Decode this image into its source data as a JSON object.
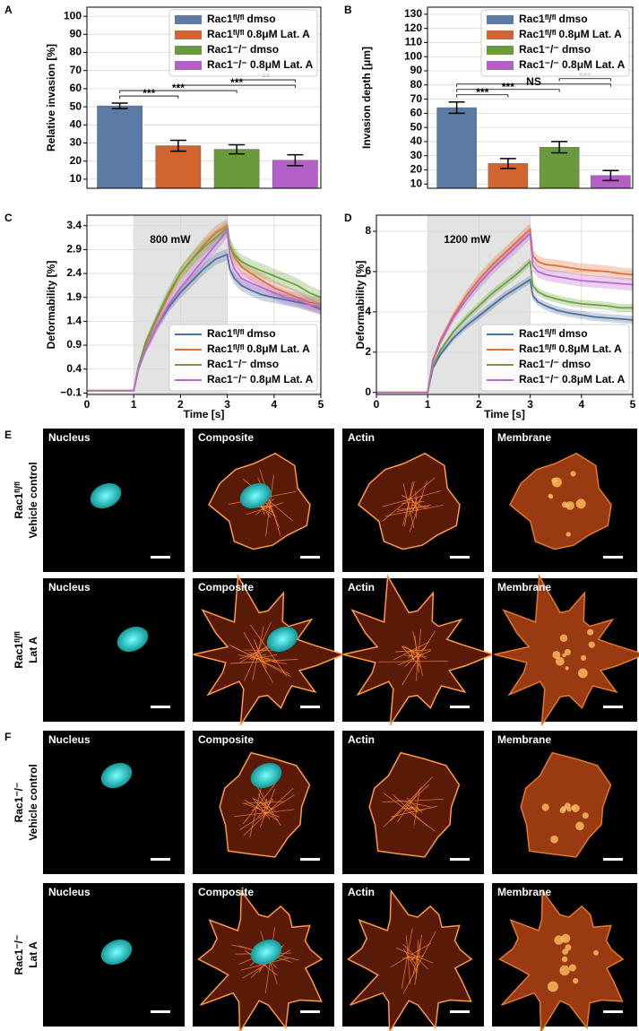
{
  "chart_data": [
    {
      "panel": "A",
      "type": "bar",
      "ylabel": "Relative invasion [%]",
      "categories": [
        "Rac1ᶠˡ/ᶠˡ dmso",
        "Rac1ᶠˡ/ᶠˡ 0.8μM Lat. A",
        "Rac1⁻/⁻ dmso",
        "Rac1⁻/⁻ 0.8μM Lat. A"
      ],
      "values": [
        50.5,
        28.5,
        26.5,
        20.5
      ],
      "errors": [
        1.5,
        3,
        2.5,
        3
      ],
      "colors": [
        "#5b7aa6",
        "#d2642f",
        "#6b9a3c",
        "#b45ec8"
      ],
      "ylim": [
        5,
        105
      ],
      "yticks": [
        10,
        20,
        30,
        40,
        50,
        60,
        70,
        80,
        90,
        100
      ],
      "grid": true,
      "legend": "upper right",
      "significance": [
        {
          "pair": [
            0,
            1
          ],
          "label": "***"
        },
        {
          "pair": [
            0,
            2
          ],
          "label": "***"
        },
        {
          "pair": [
            1,
            3
          ],
          "label": "***"
        },
        {
          "pair": [
            2,
            3
          ],
          "label": "**"
        }
      ]
    },
    {
      "panel": "B",
      "type": "bar",
      "ylabel": "Invasion depth [μm]",
      "categories": [
        "Rac1ᶠˡ/ᶠˡ dmso",
        "Rac1ᶠˡ/ᶠˡ 0.8μM Lat. A",
        "Rac1⁻/⁻ dmso",
        "Rac1⁻/⁻ 0.8μM Lat. A"
      ],
      "values": [
        64,
        24.5,
        36,
        16
      ],
      "errors": [
        4,
        3.5,
        4,
        3.5
      ],
      "colors": [
        "#5b7aa6",
        "#d2642f",
        "#6b9a3c",
        "#b45ec8"
      ],
      "ylim": [
        7,
        135
      ],
      "yticks": [
        10,
        20,
        30,
        40,
        50,
        60,
        70,
        80,
        90,
        100,
        110,
        120,
        130
      ],
      "grid": true,
      "legend": "upper right",
      "significance": [
        {
          "pair": [
            0,
            1
          ],
          "label": "***"
        },
        {
          "pair": [
            0,
            2
          ],
          "label": "***"
        },
        {
          "pair": [
            0,
            3
          ],
          "label": "NS"
        },
        {
          "pair": [
            2,
            3
          ],
          "label": "***"
        }
      ]
    },
    {
      "panel": "C",
      "type": "line",
      "ylabel": "Deformability [%]",
      "xlabel": "Time [s]",
      "annotation": "800 mW",
      "shade_x": [
        1,
        3
      ],
      "x": [
        0,
        0.5,
        1,
        1.1,
        1.25,
        1.5,
        1.75,
        2,
        2.25,
        2.5,
        2.75,
        3,
        3.05,
        3.15,
        3.3,
        3.5,
        3.75,
        4,
        4.25,
        4.5,
        4.75,
        5
      ],
      "xlim": [
        0,
        5
      ],
      "xticks": [
        0,
        1,
        2,
        3,
        4,
        5
      ],
      "ylim": [
        -0.13,
        3.62
      ],
      "yticks": [
        {
          "value": -0.1,
          "label": "−0.1"
        },
        0.4,
        0.9,
        1.4,
        1.9,
        2.4,
        2.9,
        3.4
      ],
      "grid": true,
      "legend": "lower right",
      "series": [
        {
          "name": "Rac1ᶠˡ/ᶠˡ dmso",
          "color": "#4e6fa0",
          "values": [
            -0.05,
            -0.05,
            -0.05,
            0.4,
            0.8,
            1.3,
            1.7,
            2.0,
            2.25,
            2.5,
            2.7,
            2.8,
            2.5,
            2.3,
            2.15,
            2.05,
            1.95,
            1.9,
            1.85,
            1.8,
            1.75,
            1.65
          ],
          "errors": [
            0,
            0,
            0,
            0.05,
            0.08,
            0.1,
            0.1,
            0.12,
            0.12,
            0.12,
            0.12,
            0.12,
            0.12,
            0.12,
            0.12,
            0.12,
            0.12,
            0.12,
            0.12,
            0.12,
            0.12,
            0.12
          ]
        },
        {
          "name": "Rac1ᶠˡ/ᶠˡ 0.8μM Lat. A",
          "color": "#e0713a",
          "values": [
            -0.05,
            -0.05,
            -0.05,
            0.45,
            0.9,
            1.45,
            1.95,
            2.4,
            2.7,
            3.0,
            3.25,
            3.4,
            3.0,
            2.75,
            2.55,
            2.4,
            2.25,
            2.1,
            2.0,
            1.9,
            1.8,
            1.75
          ],
          "errors": [
            0,
            0,
            0,
            0.05,
            0.08,
            0.1,
            0.12,
            0.14,
            0.15,
            0.15,
            0.15,
            0.15,
            0.15,
            0.15,
            0.15,
            0.15,
            0.15,
            0.15,
            0.15,
            0.15,
            0.15,
            0.15
          ]
        },
        {
          "name": "Rac1⁻/⁻ dmso",
          "color": "#6ca23e",
          "values": [
            -0.05,
            -0.05,
            -0.05,
            0.45,
            0.95,
            1.5,
            2.0,
            2.4,
            2.7,
            2.95,
            3.15,
            3.35,
            3.0,
            2.8,
            2.65,
            2.55,
            2.45,
            2.35,
            2.25,
            2.15,
            2.0,
            1.9
          ],
          "errors": [
            0,
            0,
            0,
            0.05,
            0.08,
            0.1,
            0.12,
            0.14,
            0.15,
            0.15,
            0.15,
            0.15,
            0.15,
            0.15,
            0.15,
            0.15,
            0.15,
            0.15,
            0.15,
            0.15,
            0.15,
            0.15
          ]
        },
        {
          "name": "Rac1⁻/⁻ 0.8μM Lat. A",
          "color": "#b968cf",
          "values": [
            -0.05,
            -0.05,
            -0.05,
            0.4,
            0.8,
            1.3,
            1.75,
            2.1,
            2.4,
            2.7,
            3.0,
            3.3,
            2.8,
            2.5,
            2.3,
            2.2,
            2.1,
            2.0,
            1.9,
            1.85,
            1.75,
            1.7
          ],
          "errors": [
            0,
            0,
            0,
            0.05,
            0.08,
            0.1,
            0.12,
            0.14,
            0.15,
            0.15,
            0.15,
            0.15,
            0.15,
            0.15,
            0.15,
            0.15,
            0.15,
            0.15,
            0.15,
            0.15,
            0.15,
            0.15
          ]
        }
      ]
    },
    {
      "panel": "D",
      "type": "line",
      "ylabel": "Deformability [%]",
      "xlabel": "Time [s]",
      "annotation": "1200 mW",
      "shade_x": [
        1,
        3
      ],
      "x": [
        0,
        0.5,
        1,
        1.1,
        1.25,
        1.5,
        1.75,
        2,
        2.25,
        2.5,
        2.75,
        3,
        3.05,
        3.15,
        3.3,
        3.5,
        3.75,
        4,
        4.25,
        4.5,
        4.75,
        5
      ],
      "xlim": [
        0,
        5
      ],
      "xticks": [
        0,
        1,
        2,
        3,
        4,
        5
      ],
      "ylim": [
        -0.1,
        8.8
      ],
      "yticks": [
        0,
        2,
        4,
        6,
        8
      ],
      "grid": true,
      "legend": "lower right",
      "series": [
        {
          "name": "Rac1ᶠˡ/ᶠˡ dmso",
          "color": "#4e6fa0",
          "values": [
            0,
            0,
            0,
            1.2,
            1.9,
            2.7,
            3.3,
            3.8,
            4.3,
            4.8,
            5.2,
            5.6,
            4.8,
            4.5,
            4.3,
            4.1,
            3.95,
            3.85,
            3.75,
            3.7,
            3.65,
            3.6
          ],
          "errors": [
            0,
            0,
            0,
            0.1,
            0.12,
            0.15,
            0.18,
            0.2,
            0.2,
            0.2,
            0.2,
            0.2,
            0.2,
            0.2,
            0.2,
            0.2,
            0.2,
            0.2,
            0.2,
            0.2,
            0.2,
            0.2
          ]
        },
        {
          "name": "Rac1ᶠˡ/ᶠˡ 0.8μM Lat. A",
          "color": "#e0713a",
          "values": [
            0,
            0,
            0,
            1.6,
            2.6,
            3.8,
            4.8,
            5.6,
            6.3,
            6.9,
            7.5,
            8.1,
            6.8,
            6.5,
            6.35,
            6.3,
            6.2,
            6.1,
            6.05,
            6.0,
            5.9,
            5.85
          ],
          "errors": [
            0,
            0,
            0,
            0.1,
            0.15,
            0.2,
            0.25,
            0.3,
            0.3,
            0.3,
            0.3,
            0.3,
            0.3,
            0.3,
            0.3,
            0.3,
            0.3,
            0.3,
            0.3,
            0.3,
            0.3,
            0.3
          ]
        },
        {
          "name": "Rac1⁻/⁻ dmso",
          "color": "#6ca23e",
          "values": [
            0,
            0,
            0,
            1.3,
            2.1,
            3.0,
            3.7,
            4.3,
            4.9,
            5.4,
            5.9,
            6.5,
            5.3,
            5.0,
            4.8,
            4.65,
            4.5,
            4.4,
            4.35,
            4.3,
            4.2,
            4.2
          ],
          "errors": [
            0,
            0,
            0,
            0.1,
            0.12,
            0.15,
            0.18,
            0.2,
            0.2,
            0.2,
            0.2,
            0.2,
            0.2,
            0.2,
            0.2,
            0.2,
            0.2,
            0.2,
            0.2,
            0.2,
            0.2,
            0.2
          ]
        },
        {
          "name": "Rac1⁻/⁻ 0.8μM Lat. A",
          "color": "#b968cf",
          "values": [
            0,
            0,
            0,
            1.5,
            2.5,
            3.7,
            4.6,
            5.4,
            6.1,
            6.7,
            7.3,
            7.9,
            6.3,
            6.0,
            5.85,
            5.75,
            5.65,
            5.55,
            5.5,
            5.45,
            5.4,
            5.35
          ],
          "errors": [
            0,
            0,
            0,
            0.1,
            0.15,
            0.2,
            0.25,
            0.3,
            0.3,
            0.3,
            0.3,
            0.3,
            0.3,
            0.3,
            0.3,
            0.3,
            0.3,
            0.3,
            0.3,
            0.3,
            0.3,
            0.3
          ]
        }
      ]
    }
  ],
  "image_panels": [
    {
      "panel": "E",
      "rows": [
        {
          "genotype": "Rac1ᶠˡ/ᶠˡ",
          "condition": "Vehicle control",
          "images": [
            "Nucleus",
            "Composite",
            "Actin",
            "Membrane"
          ]
        },
        {
          "genotype": "Rac1ᶠˡ/ᶠˡ",
          "condition": "Lat A",
          "images": [
            "Nucleus",
            "Composite",
            "Actin",
            "Membrane"
          ]
        }
      ]
    },
    {
      "panel": "F",
      "rows": [
        {
          "genotype": "Rac1⁻/⁻",
          "condition": "Vehicle control",
          "images": [
            "Nucleus",
            "Composite",
            "Actin",
            "Membrane"
          ]
        },
        {
          "genotype": "Rac1⁻/⁻",
          "condition": "Lat A",
          "images": [
            "Nucleus",
            "Composite",
            "Actin",
            "Membrane"
          ]
        }
      ]
    }
  ]
}
